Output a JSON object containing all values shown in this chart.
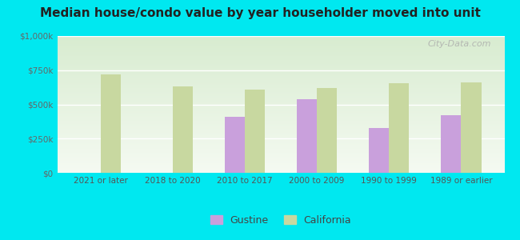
{
  "title": "Median house/condo value by year householder moved into unit",
  "categories": [
    "2021 or later",
    "2018 to 2020",
    "2010 to 2017",
    "2000 to 2009",
    "1990 to 1999",
    "1989 or earlier"
  ],
  "gustine_values": [
    null,
    null,
    410000,
    540000,
    330000,
    420000
  ],
  "california_values": [
    720000,
    630000,
    610000,
    620000,
    655000,
    660000
  ],
  "gustine_color": "#c9a0dc",
  "california_color": "#c8d8a0",
  "background_color": "#00e8f0",
  "plot_bg_top": "#d8ecd0",
  "plot_bg_bottom": "#f5faf2",
  "ylim": [
    0,
    1000000
  ],
  "yticks": [
    0,
    250000,
    500000,
    750000,
    1000000
  ],
  "ytick_labels": [
    "$0",
    "$250k",
    "$500k",
    "$750k",
    "$1,000k"
  ],
  "legend_gustine": "Gustine",
  "legend_california": "California",
  "watermark": "City-Data.com",
  "bar_width": 0.28
}
